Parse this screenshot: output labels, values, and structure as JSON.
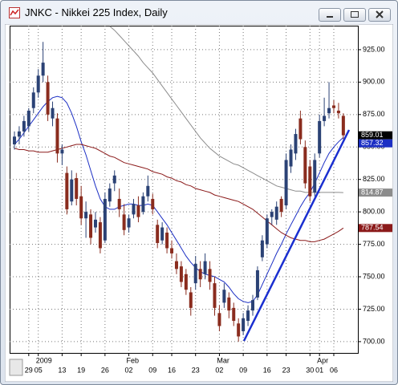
{
  "window": {
    "title": "JNKC - Nikkei 225 Index, Daily"
  },
  "chart_data": {
    "type": "candlestick",
    "categories": [
      null,
      null,
      null,
      "29",
      null,
      "05",
      null,
      null,
      null,
      null,
      "13",
      null,
      null,
      null,
      "19",
      null,
      null,
      null,
      null,
      "26",
      null,
      null,
      null,
      null,
      "02",
      null,
      null,
      null,
      null,
      "09",
      null,
      null,
      null,
      "16",
      null,
      null,
      null,
      null,
      "23",
      null,
      null,
      null,
      null,
      "02",
      null,
      null,
      null,
      null,
      "09",
      null,
      null,
      null,
      null,
      "16",
      null,
      null,
      null,
      "23",
      null,
      null,
      null,
      null,
      "30",
      null,
      "01",
      null,
      null,
      "06",
      null,
      null
    ],
    "month_labels": [
      null,
      null,
      null,
      null,
      null,
      "2009",
      null,
      null,
      null,
      null,
      null,
      null,
      null,
      null,
      null,
      null,
      null,
      null,
      null,
      null,
      null,
      null,
      null,
      null,
      "Feb",
      null,
      null,
      null,
      null,
      null,
      null,
      null,
      null,
      null,
      null,
      null,
      null,
      null,
      null,
      null,
      null,
      null,
      null,
      "Mar",
      null,
      null,
      null,
      null,
      null,
      null,
      null,
      null,
      null,
      null,
      null,
      null,
      null,
      null,
      null,
      null,
      null,
      null,
      null,
      null,
      "Apr",
      null,
      null,
      null,
      null,
      null
    ],
    "open": [
      852,
      858,
      862,
      866,
      880,
      892,
      905,
      900,
      872,
      872,
      845,
      830,
      808,
      826,
      812,
      795,
      798,
      788,
      792,
      778,
      808,
      822,
      810,
      798,
      788,
      798,
      805,
      800,
      812,
      810,
      790,
      778,
      784,
      772,
      762,
      758,
      752,
      738,
      745,
      756,
      752,
      756,
      745,
      722,
      730,
      734,
      726,
      714,
      708,
      716,
      724,
      734,
      765,
      775,
      796,
      794,
      810,
      805,
      835,
      845,
      872,
      850,
      835,
      815,
      845,
      870,
      876,
      882,
      878,
      874
    ],
    "high": [
      862,
      866,
      874,
      880,
      896,
      910,
      931,
      905,
      885,
      876,
      852,
      835,
      832,
      830,
      820,
      808,
      802,
      800,
      796,
      815,
      822,
      832,
      818,
      806,
      798,
      810,
      812,
      815,
      828,
      814,
      794,
      792,
      788,
      778,
      768,
      762,
      756,
      742,
      766,
      762,
      768,
      762,
      750,
      728,
      745,
      738,
      730,
      718,
      722,
      728,
      736,
      758,
      782,
      798,
      802,
      808,
      812,
      845,
      852,
      864,
      878,
      855,
      840,
      845,
      875,
      888,
      900,
      886,
      884,
      876
    ],
    "low": [
      848,
      852,
      858,
      862,
      876,
      888,
      900,
      870,
      866,
      838,
      836,
      798,
      805,
      805,
      790,
      780,
      775,
      784,
      768,
      776,
      804,
      816,
      796,
      782,
      784,
      795,
      792,
      798,
      808,
      798,
      772,
      775,
      768,
      764,
      752,
      742,
      736,
      720,
      740,
      742,
      748,
      740,
      720,
      708,
      726,
      718,
      712,
      700,
      705,
      712,
      720,
      732,
      762,
      772,
      790,
      790,
      796,
      802,
      830,
      840,
      852,
      818,
      808,
      812,
      842,
      866,
      872,
      876,
      872,
      856
    ],
    "close": [
      858,
      862,
      870,
      878,
      892,
      905,
      915,
      875,
      880,
      845,
      848,
      802,
      825,
      810,
      795,
      800,
      780,
      794,
      772,
      810,
      818,
      828,
      802,
      786,
      795,
      806,
      796,
      812,
      820,
      802,
      776,
      788,
      772,
      768,
      756,
      746,
      740,
      726,
      760,
      748,
      762,
      746,
      726,
      712,
      740,
      724,
      716,
      704,
      718,
      724,
      732,
      755,
      778,
      795,
      800,
      804,
      800,
      840,
      848,
      860,
      856,
      822,
      812,
      840,
      870,
      874,
      880,
      880,
      876,
      859.01
    ],
    "close_labels": [
      null,
      null,
      null,
      null,
      null,
      null,
      null,
      null,
      null,
      null,
      null,
      null,
      null,
      null,
      null,
      null,
      null,
      null,
      null,
      null,
      null,
      null,
      null,
      null,
      null,
      null,
      null,
      null,
      null,
      null,
      null,
      null,
      null,
      null,
      null,
      null,
      null,
      null,
      null,
      null,
      null,
      null,
      null,
      null,
      null,
      null,
      null,
      null,
      null,
      null,
      null,
      null,
      null,
      null,
      null,
      null,
      null,
      null,
      null,
      null,
      null,
      null,
      null,
      null,
      null,
      null,
      null,
      null,
      null,
      "859.01"
    ],
    "up_color": "#2b4275",
    "down_color": "#8a2c1e",
    "series": [
      {
        "color": "#1c2fc4",
        "values": [
          852,
          856,
          861,
          866,
          871,
          876,
          881,
          885,
          888,
          889,
          888,
          884,
          876,
          866,
          854,
          844,
          832,
          820,
          810,
          804,
          802,
          802,
          804,
          805,
          806,
          806,
          805,
          805,
          806,
          805,
          800,
          795,
          790,
          784,
          778,
          772,
          766,
          761,
          757,
          754,
          752,
          751,
          750,
          748,
          746,
          742,
          737,
          733,
          731,
          730,
          731,
          736,
          744,
          752,
          760,
          768,
          775,
          783,
          790,
          797,
          804,
          810,
          815,
          822,
          830,
          838,
          845,
          850,
          854,
          857.32
        ],
        "value_labels": [
          null,
          null,
          null,
          null,
          null,
          null,
          null,
          null,
          null,
          null,
          null,
          null,
          null,
          null,
          null,
          null,
          null,
          null,
          null,
          null,
          null,
          null,
          null,
          null,
          null,
          null,
          null,
          null,
          null,
          null,
          null,
          null,
          null,
          null,
          null,
          null,
          null,
          null,
          null,
          null,
          null,
          null,
          null,
          null,
          null,
          null,
          null,
          null,
          null,
          null,
          null,
          null,
          null,
          null,
          null,
          null,
          null,
          null,
          null,
          null,
          null,
          null,
          null,
          null,
          null,
          null,
          null,
          null,
          null,
          "857.32"
        ]
      },
      {
        "color": "#8b1a1a",
        "values": [
          849,
          848,
          848,
          847,
          847,
          846,
          846,
          846,
          847,
          848,
          849,
          850,
          851,
          852,
          852,
          851,
          850,
          849,
          847,
          845,
          843,
          842,
          840,
          838,
          837,
          836,
          835,
          834,
          833,
          831,
          830,
          829,
          827,
          826,
          824,
          823,
          821,
          820,
          818,
          817,
          816,
          815,
          813,
          812,
          811,
          810,
          809,
          808,
          806,
          804,
          802,
          799,
          796,
          793,
          790,
          787,
          784,
          782,
          780,
          779,
          778,
          778,
          777,
          777,
          778,
          779,
          781,
          783,
          785,
          787.54
        ],
        "value_labels": [
          null,
          null,
          null,
          null,
          null,
          null,
          null,
          null,
          null,
          null,
          null,
          null,
          null,
          null,
          null,
          null,
          null,
          null,
          null,
          null,
          null,
          null,
          null,
          null,
          null,
          null,
          null,
          null,
          null,
          null,
          null,
          null,
          null,
          null,
          null,
          null,
          null,
          null,
          null,
          null,
          null,
          null,
          null,
          null,
          null,
          null,
          null,
          null,
          null,
          null,
          null,
          null,
          null,
          null,
          null,
          null,
          null,
          null,
          null,
          null,
          null,
          null,
          null,
          null,
          null,
          null,
          null,
          null,
          null,
          "787.54"
        ]
      },
      {
        "color": "#8c8c8c",
        "values": [
          null,
          null,
          null,
          null,
          null,
          null,
          null,
          null,
          null,
          null,
          null,
          null,
          null,
          null,
          null,
          null,
          null,
          null,
          null,
          null,
          943,
          940,
          936,
          932,
          928,
          924,
          920,
          915,
          911,
          907,
          902,
          897,
          892,
          887,
          882,
          877,
          872,
          867,
          862,
          857,
          853,
          849,
          846,
          843,
          841,
          839,
          837,
          836,
          834,
          832,
          830,
          828,
          826,
          824,
          822,
          820,
          819,
          818,
          817,
          816,
          816,
          815,
          815,
          815,
          815,
          815,
          815,
          815,
          815,
          814.87
        ],
        "value_labels": [
          null,
          null,
          null,
          null,
          null,
          null,
          null,
          null,
          null,
          null,
          null,
          null,
          null,
          null,
          null,
          null,
          null,
          null,
          null,
          null,
          null,
          null,
          null,
          null,
          null,
          null,
          null,
          null,
          null,
          null,
          null,
          null,
          null,
          null,
          null,
          null,
          null,
          null,
          null,
          null,
          null,
          null,
          null,
          null,
          null,
          null,
          null,
          null,
          null,
          null,
          null,
          null,
          null,
          null,
          null,
          null,
          null,
          null,
          null,
          null,
          null,
          null,
          null,
          null,
          null,
          null,
          null,
          null,
          null,
          "814.87"
        ]
      }
    ],
    "ylim": [
      691.3,
      943.5
    ],
    "yticks": [
      {
        "value": 700,
        "label": "700.00"
      },
      {
        "value": 725,
        "label": "725.00"
      },
      {
        "value": 750,
        "label": "750.00"
      },
      {
        "value": 775,
        "label": "775.00"
      },
      {
        "value": 800,
        "label": "800.00"
      },
      {
        "value": 825,
        "label": "825.00"
      },
      {
        "value": 850,
        "label": "850.00"
      },
      {
        "value": 875,
        "label": "875.00"
      },
      {
        "value": 900,
        "label": "900.00"
      },
      {
        "value": 925,
        "label": "925.00"
      }
    ],
    "grid": true
  }
}
